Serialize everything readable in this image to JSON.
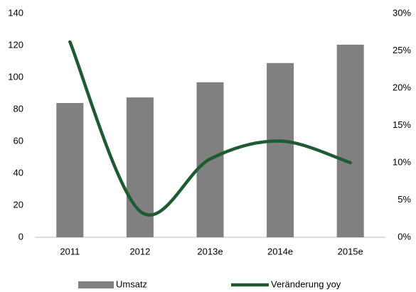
{
  "chart_data": {
    "type": "bar-line",
    "categories": [
      "2011",
      "2012",
      "2013e",
      "2014e",
      "2015e"
    ],
    "series": [
      {
        "name": "Umsatz",
        "type": "bar",
        "color": "#808080",
        "values": [
          84,
          87.5,
          97,
          109,
          120.5
        ]
      },
      {
        "name": "Veränderung yoy",
        "type": "line",
        "axis": "y2",
        "color": "#1e5a32",
        "values": [
          26.2,
          3.5,
          10.5,
          12.9,
          10.0
        ]
      }
    ],
    "ylim": [
      0,
      140
    ],
    "yticks": [
      0,
      20,
      40,
      60,
      80,
      100,
      120,
      140
    ],
    "y2lim": [
      0,
      30
    ],
    "y2ticks": [
      {
        "value": 0,
        "label": "0%"
      },
      {
        "value": 5,
        "label": "5%"
      },
      {
        "value": 10,
        "label": "10%"
      },
      {
        "value": 15,
        "label": "15%"
      },
      {
        "value": 20,
        "label": "20%"
      },
      {
        "value": 25,
        "label": "25%"
      },
      {
        "value": 30,
        "label": "30%"
      }
    ],
    "grid": false,
    "legend": "bottom"
  }
}
